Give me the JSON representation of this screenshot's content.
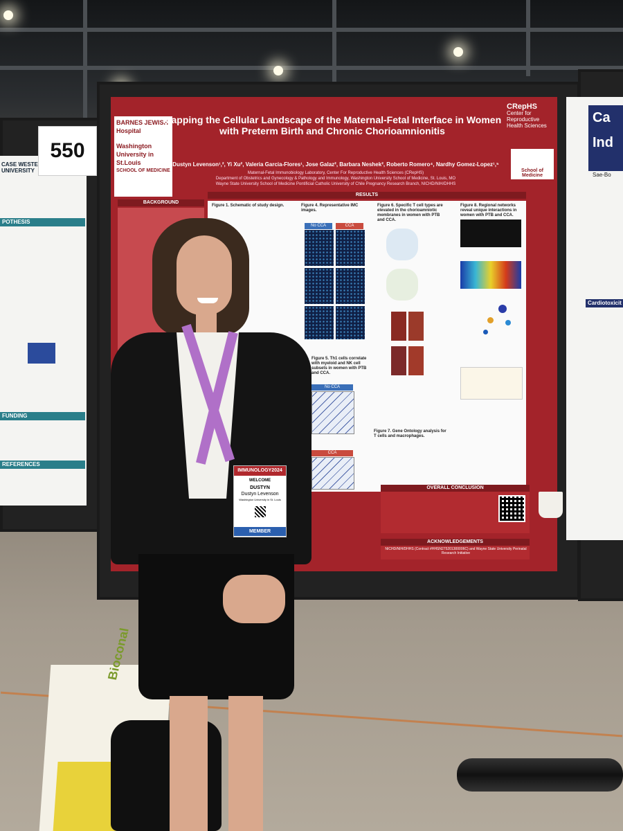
{
  "booth": {
    "number": "550"
  },
  "poster": {
    "title": "Mapping the Cellular Landscape of the Maternal-Fetal Interface in Women with Preterm Birth and Chronic Chorioamnionitis",
    "authors": "Dustyn Levenson¹,², Yi Xu², Valeria Garcia-Flores¹, Jose Galaz², Barbara Neshek², Roberto Romero⁴, Nardhy Gomez-Lopez¹,⁵",
    "affiliation_1": "Maternal-Fetal Immunobiology Laboratory, Center For Reproductive Health Sciences (CRepHS)",
    "affiliation_2": "Department of Obstetrics and Gynecology & Pathology and Immunology, Washington University School of Medicine, St. Louis, MO",
    "affiliation_3": "Wayne State University School of Medicine  Pontificial Catholic University of Chile  Pregnancy Research Branch, NICHD/NIH/DHHS",
    "logo_left_1": "BARNES JEWISH Hospital",
    "logo_left_2": "Washington University in St.Louis",
    "logo_left_3": "SCHOOL OF MEDICINE",
    "logo_right_1": "CRepHS",
    "logo_right_2": "Center for Reproductive Health Sciences",
    "logo_right_3": "School of Medicine",
    "section_background": "BACKGROUND",
    "section_results": "RESULTS",
    "section_conclusion": "OVERALL CONCLUSION",
    "section_ack": "ACKNOWLEDGEMENTS",
    "fig1": "Figure 1. Schematic of study design.",
    "fig4": "Figure 4. Representative IMC images.",
    "fig5": "Figure 5. Th1 cells correlate with myeloid and NK cell subsets in women with PTB and CCA.",
    "fig6": "Figure 6. Specific T cell types are elevated in the chorioamniotic membranes in women with PTB and CCA.",
    "fig7": "Figure 7. Gene Ontology analysis for T cells and macrophages.",
    "fig8": "Figure 8. Regional networks reveal unique interactions in women with PTB and CCA.",
    "label_no_cca": "No CCA",
    "label_cca": "CCA",
    "ack_text": "NICHD/NIH/DHHS (Contract #HHSN275201300006C) and Wayne State University Perinatal Research Initiative"
  },
  "left_board": {
    "heading_1": "POTHESIS",
    "heading_2": "FUNDING",
    "heading_3": "REFERENCES",
    "logo": "CASE WESTERN RESERVE UNIVERSITY"
  },
  "right_board": {
    "title_fragment_1": "Ca",
    "title_fragment_2": "Ind",
    "author_fragment": "Sae-Bo",
    "section": "Cardiotoxicit"
  },
  "badge": {
    "header": "IMMUNOLOGY2024",
    "welcome": "WELCOME",
    "first_name": "DUSTYN",
    "full_name": "Dustyn Levenson",
    "org": "Washington University in St. Louis",
    "role": "MEMBER"
  },
  "bag": {
    "brand": "Bioconal"
  },
  "colors": {
    "poster_red": "#a3232a",
    "lanyard": "#b070c8",
    "jacket": "#141414"
  }
}
